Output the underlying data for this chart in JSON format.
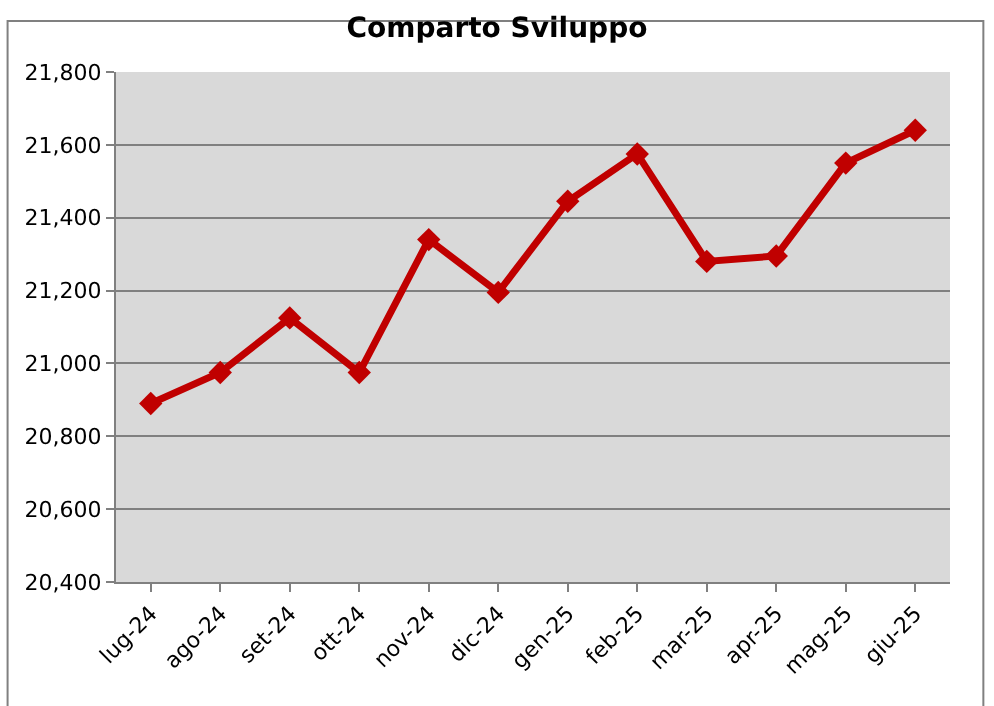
{
  "chart_data": {
    "type": "line",
    "title": "Comparto Sviluppo",
    "categories": [
      "lug-24",
      "ago-24",
      "set-24",
      "ott-24",
      "nov-24",
      "dic-24",
      "gen-25",
      "feb-25",
      "mar-25",
      "apr-25",
      "mag-25",
      "giu-25"
    ],
    "series": [
      {
        "color": "#c00000",
        "values": [
          20890,
          20975,
          21125,
          20975,
          21340,
          21195,
          21445,
          21575,
          21280,
          21295,
          21550,
          21640
        ]
      }
    ],
    "ylim": [
      20400,
      21800
    ],
    "yticks": [
      {
        "value": 20400,
        "label": "20,400"
      },
      {
        "value": 20600,
        "label": "20,600"
      },
      {
        "value": 20800,
        "label": "20,800"
      },
      {
        "value": 21000,
        "label": "21,000"
      },
      {
        "value": 21200,
        "label": "21,200"
      },
      {
        "value": 21400,
        "label": "21,400"
      },
      {
        "value": 21600,
        "label": "21,600"
      },
      {
        "value": 21800,
        "label": "21,800"
      }
    ],
    "grid": "y",
    "marker": "diamond",
    "line_style": "solid",
    "legend": false
  }
}
